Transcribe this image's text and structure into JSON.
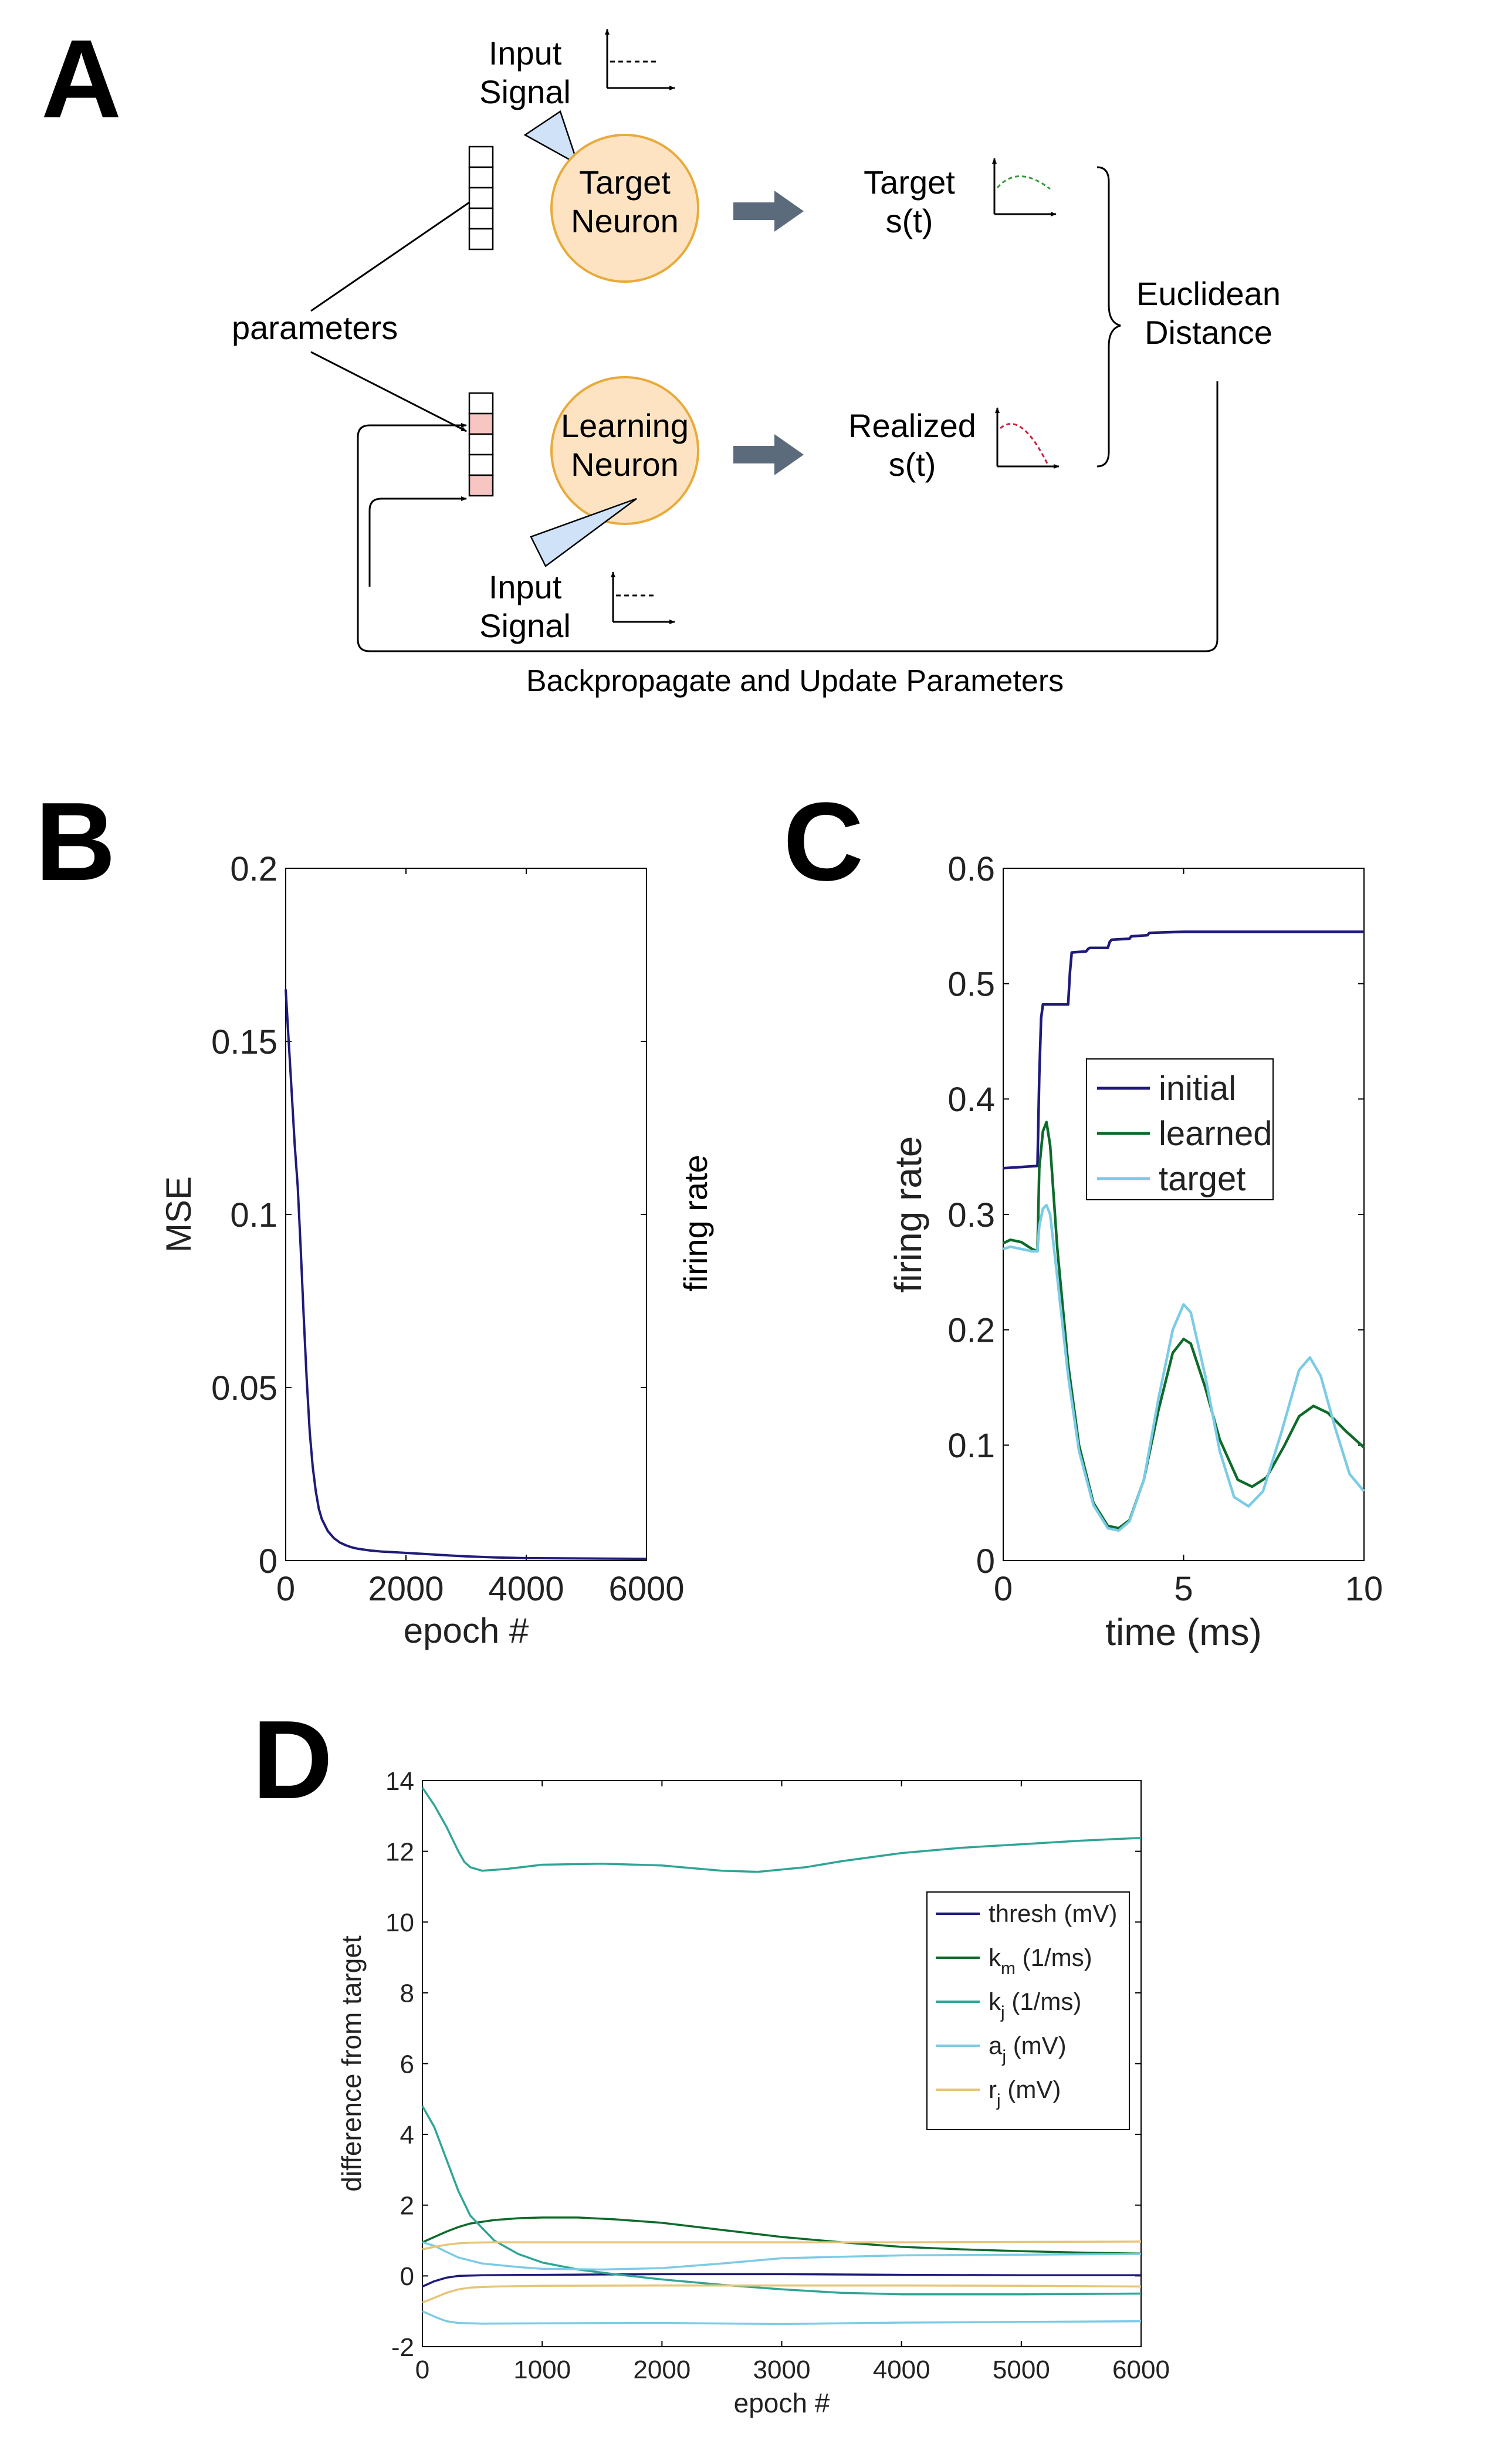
{
  "colors": {
    "navy": "#1f1a7a",
    "dark_green": "#0d6b2a",
    "teal": "#2fa596",
    "light_blue": "#7ccbe6",
    "gold": "#e6c57a",
    "neuron_fill": "#fde3c2",
    "neuron_stroke": "#e8aa3a",
    "electrode_fill": "#cfe2f8",
    "arrow_fill": "#5b6b7b",
    "pink_cell": "#f7c6c2",
    "target_trace": "#3b9b3b",
    "realized_trace": "#c8223a"
  },
  "panel_a": {
    "label": "A",
    "input_signal_top": "Input\nSignal",
    "target_neuron": "Target\nNeuron",
    "target_out": "Target\ns(t)",
    "parameters": "parameters",
    "euclidean": "Euclidean\nDistance",
    "learning_neuron": "Learning\nNeuron",
    "realized_out": "Realized\ns(t)",
    "input_signal_bottom": "Input\nSignal",
    "backprop": "Backpropagate and Update Parameters"
  },
  "chart_data": [
    {
      "panel": "B",
      "type": "line",
      "xlabel": "epoch #",
      "ylabel": "MSE",
      "side_text": "firing rate",
      "xlim": [
        0,
        6000
      ],
      "ylim": [
        0,
        0.2
      ],
      "xticks": [
        0,
        2000,
        4000,
        6000
      ],
      "yticks": [
        0,
        0.05,
        0.1,
        0.15,
        0.2
      ],
      "xtick_labels": [
        "0",
        "2000",
        "4000",
        "6000"
      ],
      "ytick_labels": [
        "0",
        "0.05",
        "0.1",
        "0.15",
        "0.2"
      ],
      "series": [
        {
          "color": "navy",
          "x": [
            0,
            50,
            100,
            150,
            200,
            250,
            300,
            350,
            400,
            450,
            500,
            550,
            600,
            700,
            800,
            900,
            1000,
            1100,
            1200,
            1400,
            1600,
            1800,
            2000,
            2300,
            2600,
            3000,
            3500,
            4000,
            5000,
            6000
          ],
          "y": [
            0.165,
            0.15,
            0.135,
            0.12,
            0.108,
            0.09,
            0.07,
            0.052,
            0.037,
            0.027,
            0.02,
            0.015,
            0.012,
            0.0085,
            0.0065,
            0.0052,
            0.0044,
            0.0038,
            0.0034,
            0.0029,
            0.0026,
            0.0024,
            0.0022,
            0.0019,
            0.0016,
            0.0012,
            0.0009,
            0.0007,
            0.0006,
            0.0005
          ]
        }
      ]
    },
    {
      "panel": "C",
      "type": "line",
      "xlabel": "time (ms)",
      "ylabel": "firing rate",
      "xlim": [
        0,
        10
      ],
      "ylim": [
        0,
        0.6
      ],
      "xticks": [
        0,
        5,
        10
      ],
      "yticks": [
        0,
        0.1,
        0.2,
        0.3,
        0.4,
        0.5,
        0.6
      ],
      "xtick_labels": [
        "0",
        "5",
        "10"
      ],
      "ytick_labels": [
        "0",
        "0.1",
        "0.2",
        "0.3",
        "0.4",
        "0.5",
        "0.6"
      ],
      "legend_position": "middle-right",
      "series": [
        {
          "name": "initial",
          "color": "navy",
          "x": [
            0,
            0.95,
            1.0,
            1.05,
            1.1,
            1.8,
            1.85,
            1.9,
            2.3,
            2.35,
            2.4,
            2.9,
            2.95,
            3.0,
            3.5,
            3.55,
            4.0,
            4.05,
            5.0,
            6.0,
            8.0,
            10.0
          ],
          "y": [
            0.34,
            0.342,
            0.42,
            0.47,
            0.482,
            0.482,
            0.51,
            0.527,
            0.528,
            0.53,
            0.531,
            0.531,
            0.536,
            0.538,
            0.539,
            0.541,
            0.542,
            0.544,
            0.545,
            0.545,
            0.545,
            0.545
          ]
        },
        {
          "name": "learned",
          "color": "dark_green",
          "x": [
            0,
            0.2,
            0.5,
            0.8,
            0.95,
            1.0,
            1.1,
            1.2,
            1.3,
            1.5,
            1.8,
            2.1,
            2.5,
            2.9,
            3.2,
            3.5,
            3.9,
            4.3,
            4.7,
            5.0,
            5.2,
            5.6,
            6.0,
            6.5,
            6.9,
            7.3,
            7.8,
            8.2,
            8.6,
            9.0,
            9.5,
            10.0
          ],
          "y": [
            0.275,
            0.278,
            0.276,
            0.27,
            0.268,
            0.34,
            0.372,
            0.38,
            0.36,
            0.27,
            0.17,
            0.1,
            0.05,
            0.03,
            0.028,
            0.035,
            0.07,
            0.13,
            0.18,
            0.192,
            0.188,
            0.15,
            0.105,
            0.07,
            0.064,
            0.072,
            0.1,
            0.125,
            0.134,
            0.128,
            0.112,
            0.098
          ]
        },
        {
          "name": "target",
          "color": "light_blue",
          "x": [
            0,
            0.2,
            0.5,
            0.8,
            0.95,
            1.0,
            1.1,
            1.2,
            1.3,
            1.5,
            1.8,
            2.1,
            2.5,
            2.9,
            3.2,
            3.5,
            3.9,
            4.3,
            4.7,
            5.0,
            5.2,
            5.6,
            6.0,
            6.4,
            6.8,
            7.2,
            7.7,
            8.2,
            8.5,
            8.8,
            9.2,
            9.6,
            10.0
          ],
          "y": [
            0.27,
            0.272,
            0.27,
            0.268,
            0.268,
            0.29,
            0.305,
            0.308,
            0.3,
            0.245,
            0.16,
            0.095,
            0.048,
            0.028,
            0.026,
            0.034,
            0.07,
            0.14,
            0.2,
            0.222,
            0.215,
            0.16,
            0.095,
            0.055,
            0.047,
            0.06,
            0.11,
            0.165,
            0.176,
            0.16,
            0.115,
            0.075,
            0.06
          ]
        }
      ]
    },
    {
      "panel": "D",
      "type": "line",
      "xlabel": "epoch #",
      "ylabel": "difference from target",
      "xlim": [
        0,
        6000
      ],
      "ylim": [
        -2,
        14
      ],
      "xticks": [
        0,
        1000,
        2000,
        3000,
        4000,
        5000,
        6000
      ],
      "yticks": [
        -2,
        0,
        2,
        4,
        6,
        8,
        10,
        12,
        14
      ],
      "xtick_labels": [
        "0",
        "1000",
        "2000",
        "3000",
        "4000",
        "5000",
        "6000"
      ],
      "ytick_labels": [
        "-2",
        "0",
        "2",
        "4",
        "6",
        "8",
        "10",
        "12",
        "14"
      ],
      "legend_position": "upper-right",
      "series": [
        {
          "name": "thresh (mV)",
          "legend_main": "thresh (mV)",
          "legend_sub": "",
          "legend_rest": "",
          "color": "navy",
          "x": [
            0,
            100,
            200,
            300,
            500,
            1000,
            2000,
            3000,
            4000,
            5000,
            6000
          ],
          "y": [
            -0.3,
            -0.15,
            -0.05,
            0.0,
            0.02,
            0.03,
            0.05,
            0.05,
            0.03,
            0.02,
            0.02
          ]
        },
        {
          "name": "k_m (1/ms)",
          "legend_main": "k",
          "legend_sub": "m",
          "legend_rest": " (1/ms)",
          "color": "dark_green",
          "x": [
            0,
            100,
            200,
            300,
            400,
            600,
            800,
            1000,
            1300,
            1600,
            2000,
            2500,
            3000,
            3500,
            4000,
            4500,
            5000,
            5500,
            6000
          ],
          "y": [
            0.95,
            1.1,
            1.25,
            1.38,
            1.48,
            1.58,
            1.63,
            1.65,
            1.65,
            1.6,
            1.5,
            1.3,
            1.1,
            0.95,
            0.82,
            0.75,
            0.7,
            0.66,
            0.63
          ]
        },
        {
          "name": "k_j (1/ms)",
          "legend_main": "k",
          "legend_sub": "j",
          "legend_rest": " (1/ms)",
          "color": "teal",
          "x": [
            0,
            100,
            200,
            300,
            350,
            400,
            500,
            700,
            1000,
            1500,
            2000,
            2500,
            2800,
            3200,
            3500,
            4000,
            4500,
            5000,
            5500,
            6000
          ],
          "y": [
            13.8,
            13.3,
            12.7,
            12.0,
            11.7,
            11.55,
            11.45,
            11.5,
            11.62,
            11.65,
            11.6,
            11.45,
            11.42,
            11.55,
            11.72,
            11.95,
            12.1,
            12.2,
            12.3,
            12.38
          ]
        },
        {
          "name": "k_j (1/ms) low",
          "legend_main": "",
          "legend_sub": "",
          "legend_rest": "",
          "color": "teal",
          "x": [
            0,
            100,
            200,
            300,
            400,
            600,
            800,
            1000,
            1300,
            1600,
            2000,
            2500,
            3000,
            3500,
            4000,
            5000,
            6000
          ],
          "y": [
            4.8,
            4.2,
            3.3,
            2.4,
            1.7,
            1.0,
            0.62,
            0.38,
            0.18,
            0.05,
            -0.1,
            -0.25,
            -0.38,
            -0.48,
            -0.52,
            -0.52,
            -0.5
          ]
        },
        {
          "name": "a_j (mV)",
          "legend_main": "a",
          "legend_sub": "j",
          "legend_rest": " (mV)",
          "color": "light_blue",
          "x": [
            0,
            100,
            200,
            300,
            500,
            800,
            1000,
            1500,
            2000,
            2500,
            3000,
            4000,
            5000,
            6000
          ],
          "y": [
            0.95,
            0.85,
            0.68,
            0.52,
            0.35,
            0.25,
            0.2,
            0.18,
            0.22,
            0.35,
            0.5,
            0.58,
            0.6,
            0.62
          ]
        },
        {
          "name": "a_j (mV) low",
          "legend_main": "",
          "legend_sub": "",
          "legend_rest": "",
          "color": "light_blue",
          "x": [
            0,
            100,
            200,
            300,
            500,
            1000,
            2000,
            3000,
            4000,
            5000,
            6000
          ],
          "y": [
            -1.0,
            -1.15,
            -1.28,
            -1.33,
            -1.35,
            -1.34,
            -1.33,
            -1.36,
            -1.32,
            -1.3,
            -1.28
          ]
        },
        {
          "name": "r_j (mV)",
          "legend_main": "r",
          "legend_sub": "j",
          "legend_rest": " (mV)",
          "color": "gold",
          "x": [
            0,
            100,
            200,
            300,
            400,
            600,
            1000,
            2000,
            3000,
            4000,
            5000,
            6000
          ],
          "y": [
            0.75,
            0.82,
            0.88,
            0.92,
            0.94,
            0.95,
            0.95,
            0.95,
            0.95,
            0.95,
            0.96,
            0.97
          ]
        },
        {
          "name": "r_j (mV) low",
          "legend_main": "",
          "legend_sub": "",
          "legend_rest": "",
          "color": "gold",
          "x": [
            0,
            100,
            200,
            300,
            400,
            600,
            1000,
            2000,
            3000,
            4000,
            5000,
            6000
          ],
          "y": [
            -0.75,
            -0.62,
            -0.48,
            -0.38,
            -0.33,
            -0.3,
            -0.28,
            -0.27,
            -0.27,
            -0.27,
            -0.28,
            -0.3
          ]
        }
      ]
    }
  ]
}
